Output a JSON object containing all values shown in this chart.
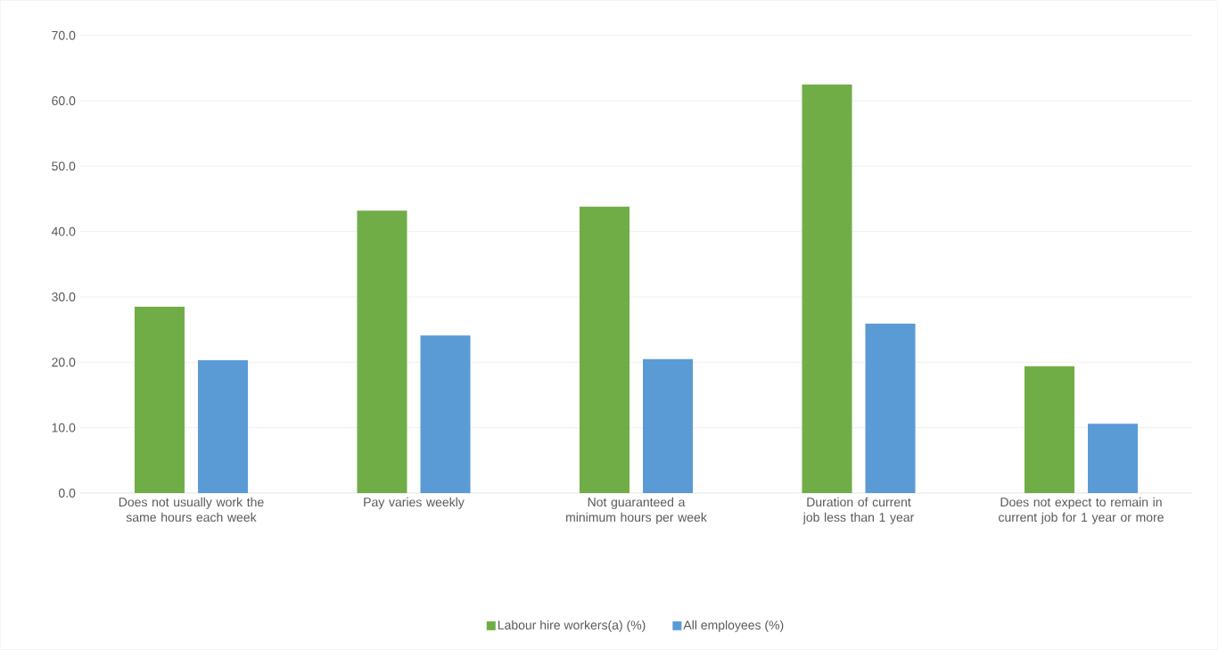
{
  "chart_data": {
    "type": "bar",
    "categories": [
      "Does not usually work the same hours each week",
      "Pay varies weekly",
      "Not guaranteed a minimum hours per week",
      "Duration of current job less than 1 year",
      "Does not expect to remain in current job for 1 year or more"
    ],
    "series": [
      {
        "name": "Labour hire workers(a) (%)",
        "color": "#70ad47",
        "values": [
          28.5,
          43.2,
          43.8,
          62.5,
          19.4
        ]
      },
      {
        "name": "All employees (%)",
        "color": "#5b9bd5",
        "values": [
          20.3,
          24.1,
          20.5,
          25.9,
          10.6
        ]
      }
    ],
    "ylim": [
      0,
      70
    ],
    "yticks": [
      {
        "value": 0,
        "label": "0.0"
      },
      {
        "value": 10,
        "label": "10.0"
      },
      {
        "value": 20,
        "label": "20.0"
      },
      {
        "value": 30,
        "label": "30.0"
      },
      {
        "value": 40,
        "label": "40.0"
      },
      {
        "value": 50,
        "label": "50.0"
      },
      {
        "value": 60,
        "label": "60.0"
      },
      {
        "value": 70,
        "label": "70.0"
      }
    ],
    "grid": "y",
    "legend": "bottom"
  }
}
